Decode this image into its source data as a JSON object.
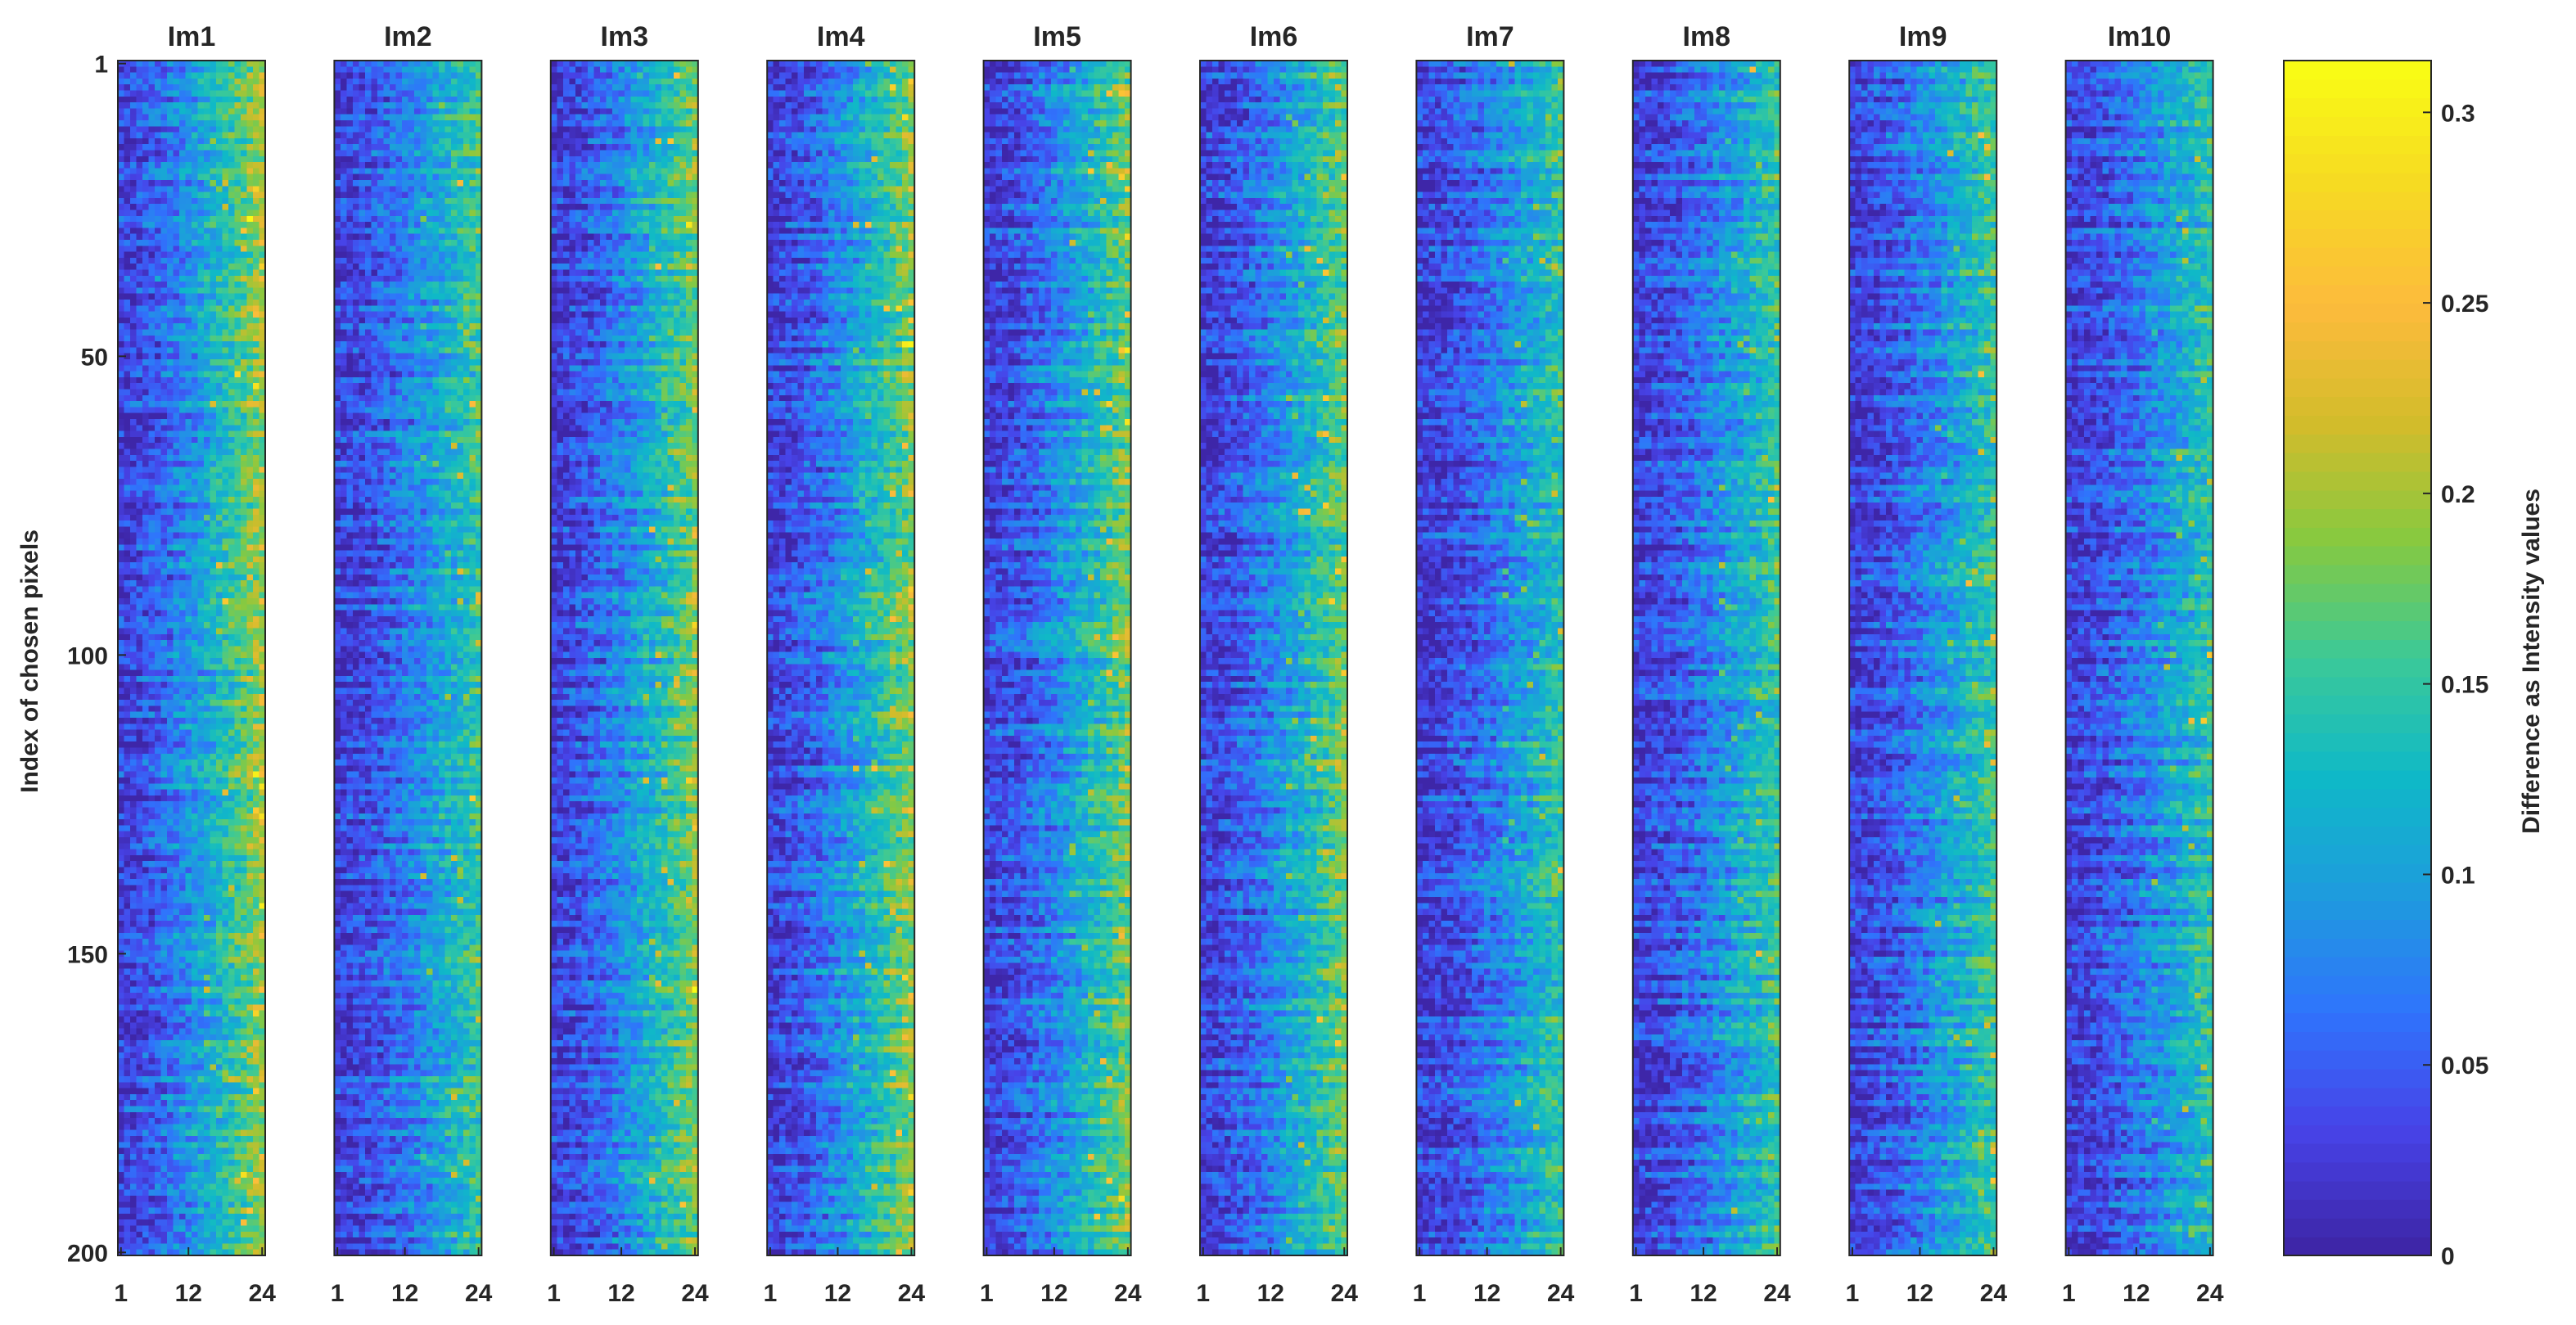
{
  "chart_data": {
    "type": "heatmap",
    "title": "",
    "ylabel": "Index of chosen pixels",
    "rows": 200,
    "cols": 24,
    "panels": [
      {
        "title": "Im1",
        "intensity": 1.0
      },
      {
        "title": "Im2",
        "intensity": 0.75
      },
      {
        "title": "Im3",
        "intensity": 0.92
      },
      {
        "title": "Im4",
        "intensity": 0.95
      },
      {
        "title": "Im5",
        "intensity": 0.9
      },
      {
        "title": "Im6",
        "intensity": 0.88
      },
      {
        "title": "Im7",
        "intensity": 0.72
      },
      {
        "title": "Im8",
        "intensity": 0.74
      },
      {
        "title": "Im9",
        "intensity": 0.76
      },
      {
        "title": "Im10",
        "intensity": 0.7
      }
    ],
    "x_ticks": [
      "1",
      "12",
      "24"
    ],
    "y_ticks": [
      "1",
      "50",
      "100",
      "150",
      "200"
    ],
    "colorbar": {
      "label": "Difference as Intensity values",
      "ticks": [
        "0",
        "0.05",
        "0.1",
        "0.15",
        "0.2",
        "0.25",
        "0.3"
      ],
      "range": [
        0,
        0.3136
      ],
      "colormap": [
        "#3e26a8",
        "#4743e8",
        "#2f74fc",
        "#1e9cdd",
        "#0fb9c7",
        "#3bc998",
        "#87c940",
        "#d3bc2b",
        "#fdbb3c",
        "#f6d923",
        "#f9fb15"
      ]
    },
    "grid": false
  }
}
